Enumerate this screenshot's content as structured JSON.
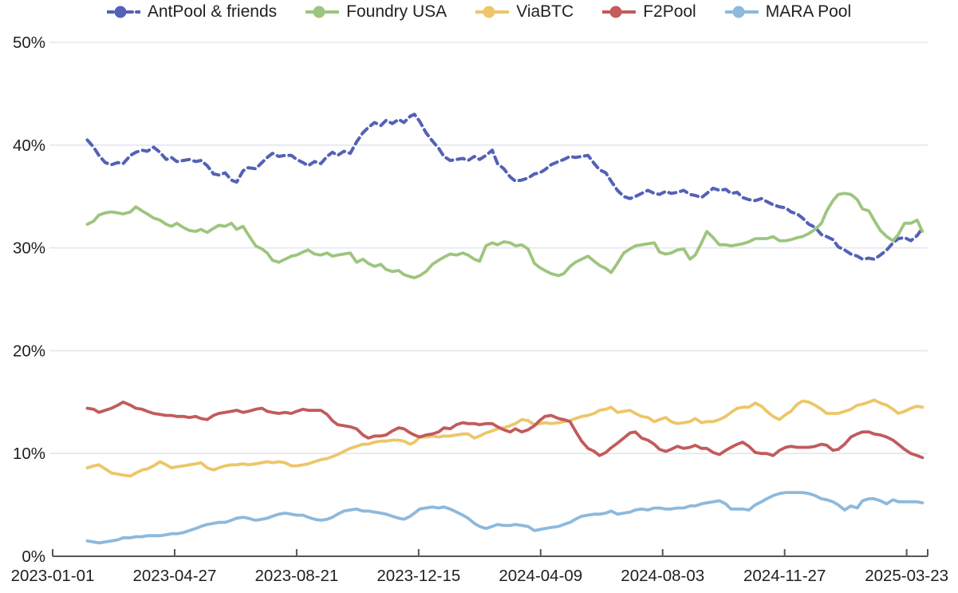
{
  "chart_data": {
    "type": "line",
    "title": "",
    "xlabel": "",
    "ylabel": "",
    "grid": "horizontal",
    "legend_position": "top-center",
    "x_unit": "days since 2023-01-01",
    "x_range": [
      0,
      832
    ],
    "y_range": [
      0,
      50
    ],
    "y_ticks": [
      {
        "value": 0,
        "label": "0%"
      },
      {
        "value": 10,
        "label": "10%"
      },
      {
        "value": 20,
        "label": "20%"
      },
      {
        "value": 30,
        "label": "30%"
      },
      {
        "value": 40,
        "label": "40%"
      },
      {
        "value": 50,
        "label": "50%"
      }
    ],
    "x_ticks": [
      {
        "day": 0,
        "label": "2023-01-01"
      },
      {
        "day": 116,
        "label": "2023-04-27"
      },
      {
        "day": 232,
        "label": "2023-08-21"
      },
      {
        "day": 348,
        "label": "2023-12-15"
      },
      {
        "day": 464,
        "label": "2024-04-09"
      },
      {
        "day": 580,
        "label": "2024-08-03"
      },
      {
        "day": 696,
        "label": "2024-11-27"
      },
      {
        "day": 812,
        "label": "2025-03-23"
      }
    ],
    "x": [
      33,
      39,
      44,
      50,
      56,
      62,
      67,
      74,
      79,
      85,
      90,
      96,
      102,
      108,
      113,
      118,
      124,
      130,
      136,
      141,
      147,
      153,
      158,
      164,
      170,
      175,
      181,
      186,
      193,
      199,
      204,
      209,
      215,
      221,
      227,
      232,
      238,
      243,
      249,
      255,
      261,
      266,
      271,
      277,
      283,
      289,
      295,
      300,
      306,
      312,
      317,
      323,
      329,
      334,
      340,
      344,
      349,
      355,
      361,
      367,
      372,
      378,
      384,
      390,
      395,
      401,
      406,
      412,
      418,
      423,
      429,
      435,
      440,
      446,
      452,
      458,
      463,
      468,
      474,
      481,
      486,
      492,
      497,
      503,
      509,
      515,
      520,
      526,
      531,
      537,
      543,
      549,
      554,
      560,
      566,
      572,
      577,
      583,
      588,
      594,
      600,
      606,
      611,
      617,
      622,
      628,
      634,
      640,
      645,
      651,
      656,
      662,
      668,
      674,
      679,
      685,
      691,
      697,
      702,
      708,
      713,
      719,
      725,
      731,
      736,
      742,
      747,
      753,
      759,
      765,
      770,
      776,
      781,
      787,
      793,
      799,
      804,
      810,
      816,
      822,
      827
    ],
    "series": [
      {
        "name": "AntPool & friends",
        "slug": "antpool-friends",
        "color": "#5361b6",
        "line_style": "dashed",
        "values": [
          40.5,
          39.8,
          39.0,
          38.3,
          38.1,
          38.3,
          38.2,
          39.0,
          39.3,
          39.5,
          39.4,
          39.8,
          39.3,
          38.6,
          38.8,
          38.4,
          38.5,
          38.6,
          38.4,
          38.5,
          38.0,
          37.2,
          37.1,
          37.3,
          36.6,
          36.4,
          37.5,
          37.8,
          37.7,
          38.3,
          38.8,
          39.2,
          38.9,
          39.0,
          39.0,
          38.6,
          38.3,
          38.0,
          38.4,
          38.2,
          38.9,
          39.3,
          39.0,
          39.4,
          39.2,
          40.3,
          41.2,
          41.7,
          42.2,
          41.9,
          42.4,
          42.1,
          42.5,
          42.2,
          42.8,
          43.0,
          42.3,
          41.2,
          40.4,
          39.7,
          38.9,
          38.5,
          38.6,
          38.7,
          38.5,
          38.9,
          38.6,
          39.0,
          39.5,
          38.2,
          37.7,
          36.9,
          36.5,
          36.6,
          36.8,
          37.2,
          37.3,
          37.6,
          38.1,
          38.4,
          38.6,
          38.9,
          38.8,
          38.9,
          39.0,
          38.2,
          37.6,
          37.3,
          36.5,
          35.6,
          35.0,
          34.8,
          35.0,
          35.3,
          35.6,
          35.3,
          35.2,
          35.5,
          35.3,
          35.4,
          35.6,
          35.2,
          35.1,
          34.9,
          35.3,
          35.8,
          35.6,
          35.7,
          35.3,
          35.4,
          34.9,
          34.7,
          34.6,
          34.8,
          34.5,
          34.2,
          34.0,
          33.9,
          33.5,
          33.3,
          32.9,
          32.3,
          32.0,
          31.3,
          31.1,
          30.8,
          30.1,
          29.8,
          29.4,
          29.2,
          28.9,
          29.0,
          28.9,
          29.3,
          29.8,
          30.5,
          30.9,
          31.0,
          30.7,
          31.2,
          31.9
        ]
      },
      {
        "name": "Foundry USA",
        "slug": "foundry-usa",
        "color": "#9dc57e",
        "line_style": "solid",
        "values": [
          32.3,
          32.6,
          33.2,
          33.4,
          33.5,
          33.4,
          33.3,
          33.5,
          34.0,
          33.6,
          33.3,
          32.9,
          32.7,
          32.3,
          32.1,
          32.4,
          32.0,
          31.7,
          31.6,
          31.8,
          31.5,
          31.9,
          32.2,
          32.1,
          32.4,
          31.8,
          32.1,
          31.3,
          30.2,
          29.9,
          29.5,
          28.8,
          28.6,
          28.9,
          29.2,
          29.3,
          29.6,
          29.8,
          29.4,
          29.3,
          29.5,
          29.2,
          29.3,
          29.4,
          29.5,
          28.6,
          28.9,
          28.5,
          28.2,
          28.4,
          27.9,
          27.7,
          27.8,
          27.4,
          27.2,
          27.1,
          27.3,
          27.7,
          28.4,
          28.8,
          29.1,
          29.4,
          29.3,
          29.5,
          29.3,
          28.9,
          28.7,
          30.2,
          30.5,
          30.3,
          30.6,
          30.5,
          30.2,
          30.3,
          29.9,
          28.5,
          28.1,
          27.8,
          27.5,
          27.3,
          27.5,
          28.2,
          28.6,
          28.9,
          29.2,
          28.7,
          28.3,
          28.0,
          27.6,
          28.5,
          29.5,
          29.9,
          30.2,
          30.3,
          30.4,
          30.5,
          29.6,
          29.4,
          29.5,
          29.8,
          29.9,
          28.9,
          29.3,
          30.5,
          31.6,
          31.0,
          30.3,
          30.3,
          30.2,
          30.3,
          30.4,
          30.6,
          30.9,
          30.9,
          30.9,
          31.1,
          30.7,
          30.7,
          30.8,
          31.0,
          31.1,
          31.4,
          31.8,
          32.4,
          33.6,
          34.6,
          35.2,
          35.3,
          35.2,
          34.7,
          33.8,
          33.6,
          32.7,
          31.7,
          31.1,
          30.7,
          31.3,
          32.4,
          32.4,
          32.7,
          31.6
        ]
      },
      {
        "name": "ViaBTC",
        "slug": "viabtc",
        "color": "#ecc668",
        "line_style": "solid",
        "values": [
          8.6,
          8.8,
          8.9,
          8.5,
          8.1,
          8.0,
          7.9,
          7.8,
          8.1,
          8.4,
          8.5,
          8.8,
          9.2,
          8.9,
          8.6,
          8.7,
          8.8,
          8.9,
          9.0,
          9.1,
          8.6,
          8.4,
          8.6,
          8.8,
          8.9,
          8.9,
          9.0,
          8.9,
          9.0,
          9.1,
          9.2,
          9.1,
          9.2,
          9.1,
          8.8,
          8.8,
          8.9,
          9.0,
          9.2,
          9.4,
          9.5,
          9.7,
          9.9,
          10.2,
          10.5,
          10.7,
          10.9,
          10.9,
          11.1,
          11.2,
          11.2,
          11.3,
          11.3,
          11.2,
          10.9,
          11.1,
          11.6,
          11.6,
          11.7,
          11.6,
          11.7,
          11.7,
          11.8,
          11.9,
          11.9,
          11.5,
          11.7,
          12.0,
          12.2,
          12.4,
          12.5,
          12.7,
          12.9,
          13.3,
          13.2,
          12.8,
          12.9,
          13.0,
          12.9,
          13.0,
          13.1,
          13.2,
          13.4,
          13.6,
          13.7,
          13.9,
          14.2,
          14.3,
          14.5,
          14.0,
          14.1,
          14.2,
          13.9,
          13.6,
          13.5,
          13.1,
          13.3,
          13.5,
          13.1,
          12.9,
          13.0,
          13.1,
          13.4,
          13.0,
          13.1,
          13.1,
          13.3,
          13.6,
          14.0,
          14.4,
          14.5,
          14.5,
          14.9,
          14.6,
          14.1,
          13.6,
          13.3,
          13.8,
          14.1,
          14.8,
          15.1,
          15.0,
          14.7,
          14.3,
          13.9,
          13.9,
          13.9,
          14.1,
          14.3,
          14.7,
          14.8,
          15.0,
          15.2,
          14.9,
          14.7,
          14.3,
          13.9,
          14.1,
          14.4,
          14.6,
          14.5
        ]
      },
      {
        "name": "F2Pool",
        "slug": "f2pool",
        "color": "#c25b5b",
        "line_style": "solid",
        "values": [
          14.4,
          14.3,
          14.0,
          14.2,
          14.4,
          14.7,
          15.0,
          14.7,
          14.4,
          14.3,
          14.1,
          13.9,
          13.8,
          13.7,
          13.7,
          13.6,
          13.6,
          13.5,
          13.6,
          13.4,
          13.3,
          13.7,
          13.9,
          14.0,
          14.1,
          14.2,
          14.0,
          14.1,
          14.3,
          14.4,
          14.1,
          14.0,
          13.9,
          14.0,
          13.9,
          14.1,
          14.3,
          14.2,
          14.2,
          14.2,
          13.8,
          13.2,
          12.8,
          12.7,
          12.6,
          12.4,
          11.8,
          11.5,
          11.7,
          11.7,
          11.8,
          12.2,
          12.5,
          12.4,
          12.0,
          11.8,
          11.6,
          11.8,
          11.9,
          12.1,
          12.5,
          12.4,
          12.8,
          13.0,
          12.9,
          12.9,
          12.8,
          12.9,
          12.9,
          12.6,
          12.3,
          12.1,
          12.4,
          12.1,
          12.3,
          12.7,
          13.2,
          13.6,
          13.7,
          13.4,
          13.3,
          13.1,
          12.2,
          11.2,
          10.5,
          10.2,
          9.8,
          10.1,
          10.55,
          11.0,
          11.5,
          12.0,
          12.1,
          11.5,
          11.3,
          10.9,
          10.4,
          10.2,
          10.4,
          10.7,
          10.5,
          10.6,
          10.8,
          10.5,
          10.5,
          10.1,
          9.9,
          10.3,
          10.6,
          10.9,
          11.1,
          10.7,
          10.1,
          10.0,
          10.0,
          9.8,
          10.3,
          10.6,
          10.7,
          10.6,
          10.6,
          10.6,
          10.7,
          10.9,
          10.8,
          10.3,
          10.4,
          10.9,
          11.6,
          11.9,
          12.1,
          12.1,
          11.9,
          11.8,
          11.6,
          11.3,
          10.9,
          10.4,
          10.0,
          9.8,
          9.6
        ]
      },
      {
        "name": "MARA Pool",
        "slug": "mara-pool",
        "color": "#8db9dc",
        "line_style": "solid",
        "values": [
          1.5,
          1.4,
          1.3,
          1.4,
          1.5,
          1.6,
          1.8,
          1.8,
          1.9,
          1.9,
          2.0,
          2.0,
          2.0,
          2.1,
          2.2,
          2.2,
          2.3,
          2.5,
          2.7,
          2.9,
          3.1,
          3.2,
          3.3,
          3.3,
          3.5,
          3.7,
          3.8,
          3.7,
          3.5,
          3.6,
          3.7,
          3.9,
          4.1,
          4.2,
          4.1,
          4.0,
          4.0,
          3.8,
          3.6,
          3.5,
          3.6,
          3.8,
          4.1,
          4.4,
          4.5,
          4.6,
          4.4,
          4.4,
          4.3,
          4.2,
          4.1,
          3.9,
          3.7,
          3.6,
          3.9,
          4.2,
          4.6,
          4.7,
          4.8,
          4.7,
          4.8,
          4.6,
          4.3,
          4.0,
          3.7,
          3.2,
          2.9,
          2.7,
          2.9,
          3.1,
          3.0,
          3.0,
          3.1,
          3.0,
          2.9,
          2.5,
          2.6,
          2.7,
          2.8,
          2.9,
          3.1,
          3.3,
          3.6,
          3.9,
          4.0,
          4.1,
          4.1,
          4.2,
          4.4,
          4.1,
          4.2,
          4.3,
          4.5,
          4.6,
          4.5,
          4.7,
          4.7,
          4.6,
          4.6,
          4.7,
          4.7,
          4.9,
          4.9,
          5.1,
          5.2,
          5.3,
          5.4,
          5.1,
          4.6,
          4.6,
          4.6,
          4.5,
          5.0,
          5.3,
          5.6,
          5.9,
          6.1,
          6.2,
          6.2,
          6.2,
          6.2,
          6.1,
          5.9,
          5.6,
          5.5,
          5.3,
          5.0,
          4.5,
          4.9,
          4.7,
          5.4,
          5.6,
          5.6,
          5.4,
          5.1,
          5.5,
          5.3,
          5.3,
          5.3,
          5.3,
          5.2
        ]
      }
    ]
  },
  "colors": {
    "background": "#ffffff",
    "gridline": "#e5e5f0",
    "axis": "#565656",
    "label_text": "#1f1f1f",
    "legend_text": "#222222"
  }
}
